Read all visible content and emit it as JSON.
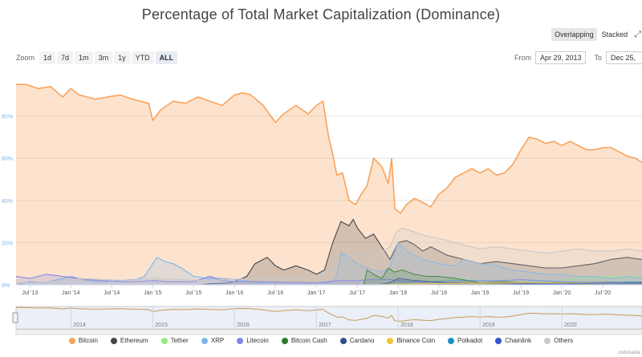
{
  "title": "Percentage of Total Market Capitalization (Dominance)",
  "mode": {
    "options": [
      "Overlapping",
      "Stacked"
    ],
    "selected": "Overlapping"
  },
  "zoom": {
    "label": "Zoom",
    "options": [
      "1d",
      "7d",
      "1m",
      "3m",
      "1y",
      "YTD",
      "ALL"
    ],
    "selected": "ALL"
  },
  "range": {
    "from_label": "From",
    "from_value": "Apr 29, 2013",
    "to_label": "To",
    "to_value": "Dec 25,"
  },
  "credit": "coinmarke",
  "chart_data": {
    "type": "area",
    "title": "Percentage of Total Market Capitalization (Dominance)",
    "ylim": [
      0,
      100
    ],
    "y_ticks": [
      0,
      20,
      40,
      60,
      80
    ],
    "y_tick_labels": [
      "0%",
      "20%",
      "40%",
      "60%",
      "80%"
    ],
    "x_tick_labels": [
      "Jul '13",
      "Jan '14",
      "Jul '14",
      "Jan '15",
      "Jul '15",
      "Jan '16",
      "Jul '16",
      "Jan '17",
      "Jul '17",
      "Jan '18",
      "Jul '18",
      "Jan '19",
      "Jul '19",
      "Jan '20",
      "Jul '20"
    ],
    "x_tick_positions": [
      2013.5,
      2014.0,
      2014.5,
      2015.0,
      2015.5,
      2016.0,
      2016.5,
      2017.0,
      2017.5,
      2018.0,
      2018.5,
      2019.0,
      2019.5,
      2020.0,
      2020.5
    ],
    "xlim": [
      2013.33,
      2020.98
    ],
    "navigator_labels": [
      "2014",
      "2015",
      "2016",
      "2017",
      "2018",
      "2019",
      "2020"
    ],
    "navigator_positions": [
      2014.0,
      2015.0,
      2016.0,
      2017.0,
      2018.0,
      2019.0,
      2020.0
    ],
    "legend_position": "bottom",
    "series": [
      {
        "name": "Bitcoin",
        "color": "#f7a35c",
        "x": [
          2013.33,
          2013.45,
          2013.6,
          2013.75,
          2013.9,
          2014.0,
          2014.1,
          2014.2,
          2014.3,
          2014.45,
          2014.6,
          2014.75,
          2014.85,
          2014.95,
          2015.0,
          2015.1,
          2015.25,
          2015.4,
          2015.55,
          2015.7,
          2015.85,
          2016.0,
          2016.1,
          2016.2,
          2016.35,
          2016.5,
          2016.6,
          2016.75,
          2016.9,
          2017.0,
          2017.08,
          2017.15,
          2017.2,
          2017.25,
          2017.32,
          2017.4,
          2017.48,
          2017.55,
          2017.62,
          2017.7,
          2017.8,
          2017.88,
          2017.92,
          2017.96,
          2018.03,
          2018.1,
          2018.2,
          2018.3,
          2018.4,
          2018.5,
          2018.6,
          2018.7,
          2018.8,
          2018.9,
          2019.0,
          2019.1,
          2019.2,
          2019.3,
          2019.4,
          2019.5,
          2019.6,
          2019.7,
          2019.8,
          2019.9,
          2020.0,
          2020.1,
          2020.2,
          2020.3,
          2020.4,
          2020.5,
          2020.6,
          2020.7,
          2020.8,
          2020.9,
          2020.98
        ],
        "values": [
          95,
          95,
          93,
          94,
          89,
          93,
          90,
          89,
          88,
          89,
          90,
          88,
          87,
          86,
          78,
          83,
          87,
          86,
          89,
          87,
          85,
          90,
          91,
          90,
          85,
          77,
          81,
          85,
          81,
          85,
          87,
          70,
          62,
          52,
          53,
          40,
          38,
          43,
          47,
          60,
          56,
          48,
          60,
          36,
          34,
          38,
          41,
          39,
          37,
          43,
          46,
          51,
          53,
          55,
          53,
          55,
          52,
          53,
          57,
          64,
          70,
          69,
          67,
          68,
          66,
          68,
          66,
          64,
          64,
          65,
          65,
          63,
          61,
          60,
          58
        ]
      },
      {
        "name": "Ethereum",
        "color": "#434348",
        "x": [
          2013.33,
          2015.58,
          2015.7,
          2015.9,
          2016.0,
          2016.15,
          2016.25,
          2016.4,
          2016.5,
          2016.6,
          2016.75,
          2016.9,
          2017.0,
          2017.1,
          2017.2,
          2017.3,
          2017.4,
          2017.45,
          2017.5,
          2017.6,
          2017.7,
          2017.8,
          2017.9,
          2018.0,
          2018.1,
          2018.2,
          2018.3,
          2018.4,
          2018.5,
          2018.6,
          2018.8,
          2019.0,
          2019.2,
          2019.4,
          2019.6,
          2019.8,
          2020.0,
          2020.2,
          2020.4,
          2020.6,
          2020.8,
          2020.98
        ],
        "values": [
          0,
          0,
          0.5,
          0.8,
          1.5,
          4,
          10,
          13,
          9,
          7,
          9,
          7,
          5,
          7,
          20,
          30,
          28,
          31,
          27,
          22,
          24,
          18,
          12,
          20,
          21,
          19,
          16,
          18,
          16,
          14,
          12,
          10,
          11,
          10,
          9,
          8,
          8,
          9,
          10,
          12,
          13,
          12
        ]
      },
      {
        "name": "Tether",
        "color": "#90ed7d",
        "x": [
          2013.33,
          2017.7,
          2017.9,
          2018.0,
          2018.2,
          2018.5,
          2018.8,
          2019.0,
          2019.3,
          2019.6,
          2020.0,
          2020.3,
          2020.6,
          2020.98
        ],
        "values": [
          0,
          0,
          0.5,
          1,
          1.5,
          2,
          2.5,
          2,
          2,
          1.5,
          2,
          3.5,
          4,
          4
        ]
      },
      {
        "name": "XRP",
        "color": "#7cb5ec",
        "x": [
          2013.33,
          2013.5,
          2013.65,
          2013.8,
          2013.9,
          2014.0,
          2014.2,
          2014.4,
          2014.6,
          2014.8,
          2014.9,
          2014.95,
          2015.05,
          2015.15,
          2015.25,
          2015.35,
          2015.5,
          2015.7,
          2015.85,
          2016.0,
          2016.3,
          2016.5,
          2016.7,
          2016.9,
          2017.0,
          2017.1,
          2017.2,
          2017.25,
          2017.3,
          2017.4,
          2017.5,
          2017.6,
          2017.7,
          2017.8,
          2017.9,
          2017.95,
          2018.0,
          2018.05,
          2018.15,
          2018.3,
          2018.5,
          2018.7,
          2018.8,
          2018.9,
          2019.0,
          2019.2,
          2019.4,
          2019.6,
          2019.8,
          2020.0,
          2020.2,
          2020.4,
          2020.6,
          2020.8,
          2020.98
        ],
        "values": [
          0,
          1.5,
          1,
          2,
          3,
          4,
          2,
          1.5,
          2,
          2.5,
          4,
          7,
          13,
          11,
          10,
          8,
          4,
          3,
          3,
          2.5,
          1,
          1.5,
          1,
          1,
          1,
          1,
          1.5,
          5,
          15,
          13,
          10,
          8,
          7,
          6,
          8,
          15,
          20,
          18,
          15,
          12,
          10,
          9,
          12,
          11,
          10,
          9,
          7,
          6,
          5,
          5,
          4,
          4,
          3,
          4,
          3
        ]
      },
      {
        "name": "Litecoin",
        "color": "#8085e9",
        "x": [
          2013.33,
          2013.5,
          2013.7,
          2013.9,
          2014.0,
          2014.2,
          2014.4,
          2014.6,
          2014.8,
          2015.0,
          2015.2,
          2015.5,
          2015.7,
          2015.85,
          2016.0,
          2016.3,
          2016.6,
          2016.9,
          2017.0,
          2017.3,
          2017.5,
          2017.7,
          2017.9,
          2018.1,
          2018.4,
          2018.7,
          2019.0,
          2019.3,
          2019.5,
          2019.7,
          2020.0,
          2020.3,
          2020.6,
          2020.98
        ],
        "values": [
          4,
          3,
          5,
          4,
          3.5,
          2.5,
          2,
          1.5,
          1.5,
          2,
          1.5,
          1.5,
          4,
          2,
          1.5,
          1.5,
          1.2,
          1,
          1,
          2,
          2,
          2.5,
          2.5,
          1.5,
          1.5,
          2,
          2,
          2,
          2.5,
          2,
          1.5,
          1.2,
          1,
          1.2
        ]
      },
      {
        "name": "Bitcoin Cash",
        "color": "#2b7a2b",
        "x": [
          2013.33,
          2017.58,
          2017.62,
          2017.7,
          2017.8,
          2017.88,
          2017.95,
          2018.05,
          2018.2,
          2018.35,
          2018.5,
          2018.7,
          2018.85,
          2019.0,
          2019.3,
          2019.6,
          2020.0,
          2020.5,
          2020.98
        ],
        "values": [
          0,
          0,
          7,
          5,
          3,
          8,
          6,
          7,
          5,
          4,
          4,
          3,
          2,
          1,
          1.5,
          1,
          1,
          1,
          0.8
        ]
      },
      {
        "name": "Cardano",
        "color": "#2f4f8f",
        "x": [
          2013.33,
          2017.75,
          2017.9,
          2018.0,
          2018.2,
          2018.6,
          2019.0,
          2019.6,
          2020.0,
          2020.5,
          2020.98
        ],
        "values": [
          0,
          0,
          1,
          3,
          2,
          1,
          0.8,
          0.6,
          0.6,
          1.1,
          1
        ]
      },
      {
        "name": "Binance Coin",
        "color": "#f1c232",
        "x": [
          2013.33,
          2017.6,
          2018.0,
          2018.5,
          2019.0,
          2019.5,
          2020.0,
          2020.5,
          2020.98
        ],
        "values": [
          0,
          0,
          0.3,
          0.6,
          0.8,
          1.2,
          0.8,
          0.9,
          0.9
        ]
      },
      {
        "name": "Polkadot",
        "color": "#1f8fc9",
        "x": [
          2013.33,
          2020.65,
          2020.7,
          2020.8,
          2020.98
        ],
        "values": [
          0,
          0,
          1,
          1.3,
          1.2
        ]
      },
      {
        "name": "Chainlink",
        "color": "#3355cc",
        "x": [
          2013.33,
          2019.3,
          2019.6,
          2020.0,
          2020.5,
          2020.7,
          2020.98
        ],
        "values": [
          0,
          0,
          0.4,
          0.4,
          0.8,
          1.1,
          0.9
        ]
      },
      {
        "name": "Others",
        "color": "#c8c8c8",
        "x": [
          2013.33,
          2013.6,
          2013.9,
          2014.1,
          2014.4,
          2014.7,
          2015.0,
          2015.3,
          2015.6,
          2015.9,
          2016.2,
          2016.5,
          2016.8,
          2017.0,
          2017.2,
          2017.3,
          2017.5,
          2017.7,
          2017.9,
          2017.98,
          2018.05,
          2018.2,
          2018.35,
          2018.5,
          2018.7,
          2018.9,
          2019.0,
          2019.2,
          2019.4,
          2019.6,
          2019.8,
          2020.0,
          2020.2,
          2020.4,
          2020.6,
          2020.8,
          2020.98
        ],
        "values": [
          1,
          1,
          2,
          3,
          2.5,
          2,
          3,
          2.5,
          2,
          2.5,
          3,
          3,
          3,
          4,
          8,
          12,
          16,
          13,
          18,
          25,
          27,
          25,
          23,
          22,
          20,
          18,
          17,
          18,
          17,
          16,
          15,
          16,
          17,
          16,
          16,
          17,
          16
        ]
      }
    ]
  }
}
